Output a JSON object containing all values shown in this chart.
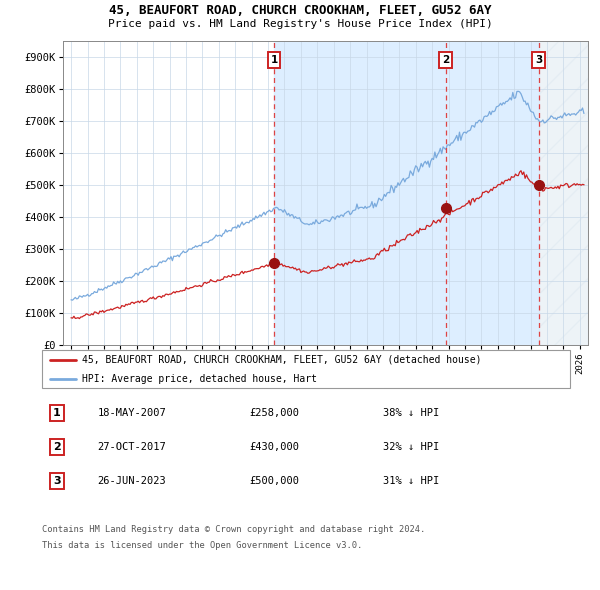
{
  "title": "45, BEAUFORT ROAD, CHURCH CROOKHAM, FLEET, GU52 6AY",
  "subtitle": "Price paid vs. HM Land Registry's House Price Index (HPI)",
  "hpi_label": "HPI: Average price, detached house, Hart",
  "property_label": "45, BEAUFORT ROAD, CHURCH CROOKHAM, FLEET, GU52 6AY (detached house)",
  "hpi_color": "#7aaadd",
  "property_color": "#cc2222",
  "vline_color": "#dd4444",
  "bg_shaded_color": "#ddeeff",
  "marker_color": "#991111",
  "sales": [
    {
      "label": "1",
      "date_str": "18-MAY-2007",
      "price": 258000,
      "pct": "38% ↓ HPI",
      "date_x": 2007.37
    },
    {
      "label": "2",
      "date_str": "27-OCT-2017",
      "price": 430000,
      "pct": "32% ↓ HPI",
      "date_x": 2017.82
    },
    {
      "label": "3",
      "date_str": "26-JUN-2023",
      "price": 500000,
      "pct": "31% ↓ HPI",
      "date_x": 2023.49
    }
  ],
  "ylim": [
    0,
    950000
  ],
  "xlim": [
    1994.5,
    2026.5
  ],
  "yticks": [
    0,
    100000,
    200000,
    300000,
    400000,
    500000,
    600000,
    700000,
    800000,
    900000
  ],
  "ytick_labels": [
    "£0",
    "£100K",
    "£200K",
    "£300K",
    "£400K",
    "£500K",
    "£600K",
    "£700K",
    "£800K",
    "£900K"
  ],
  "xticks": [
    1995,
    1996,
    1997,
    1998,
    1999,
    2000,
    2001,
    2002,
    2003,
    2004,
    2005,
    2006,
    2007,
    2008,
    2009,
    2010,
    2011,
    2012,
    2013,
    2014,
    2015,
    2016,
    2017,
    2018,
    2019,
    2020,
    2021,
    2022,
    2023,
    2024,
    2025,
    2026
  ],
  "footer1": "Contains HM Land Registry data © Crown copyright and database right 2024.",
  "footer2": "This data is licensed under the Open Government Licence v3.0."
}
